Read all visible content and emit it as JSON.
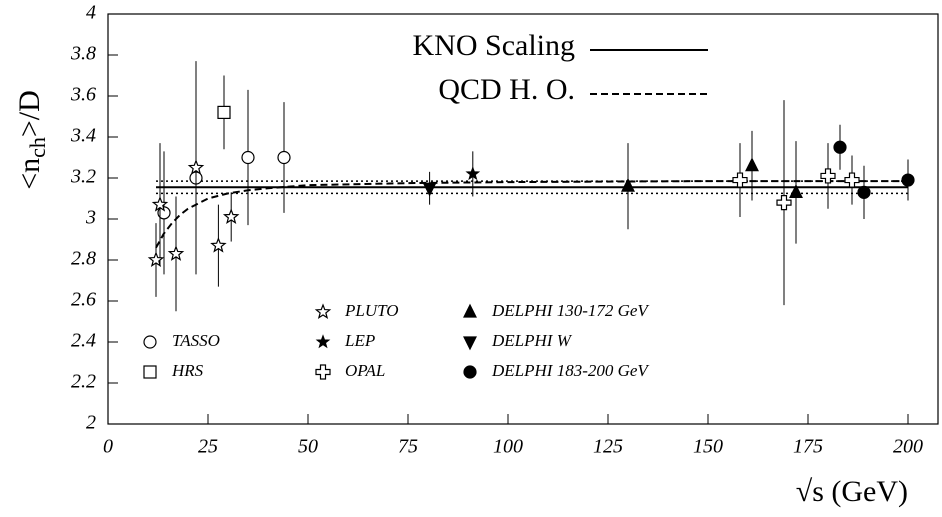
{
  "chart_data": {
    "type": "scatter",
    "y_label": {
      "main": "<n",
      "sub": "ch",
      "rest": ">/D"
    },
    "x_label": "√s (GeV)",
    "xlim": [
      0,
      208
    ],
    "ylim": [
      2,
      4
    ],
    "xticks": [
      0,
      25,
      50,
      75,
      100,
      125,
      150,
      175,
      200
    ],
    "yticks": [
      2,
      2.2,
      2.4,
      2.6,
      2.8,
      3,
      3.2,
      3.4,
      3.6,
      3.8,
      4
    ],
    "lines": [
      {
        "name": "KNO Scaling",
        "style": "solid",
        "x": [
          12,
          200
        ],
        "values": [
          3.155,
          3.155
        ],
        "band": [
          3.125,
          3.185
        ]
      },
      {
        "name": "QCD H. O.",
        "style": "dashed",
        "x": [
          12,
          14,
          16,
          18,
          20,
          25,
          30,
          35,
          40,
          50,
          75,
          100,
          150,
          200
        ],
        "values": [
          2.86,
          2.93,
          2.98,
          3.02,
          3.05,
          3.1,
          3.125,
          3.14,
          3.15,
          3.165,
          3.175,
          3.18,
          3.185,
          3.185
        ]
      }
    ],
    "series": [
      {
        "name": "TASSO",
        "marker": "open-circle",
        "x": [
          14,
          22,
          35,
          44
        ],
        "values": [
          3.03,
          3.2,
          3.3,
          3.3
        ],
        "errors": [
          0.3,
          0.3,
          0.33,
          0.27
        ]
      },
      {
        "name": "HRS",
        "marker": "open-square",
        "x": [
          29
        ],
        "values": [
          3.52
        ],
        "errors": [
          0.18
        ]
      },
      {
        "name": "PLUTO",
        "marker": "open-star",
        "x": [
          12,
          13,
          17,
          22,
          27.6,
          30.8
        ],
        "values": [
          2.8,
          3.07,
          2.83,
          3.25,
          2.87,
          3.01
        ],
        "errors": [
          0.18,
          0.3,
          0.28,
          0.52,
          0.2,
          0.12
        ]
      },
      {
        "name": "LEP",
        "marker": "filled-star",
        "x": [
          91.2
        ],
        "values": [
          3.22
        ],
        "errors": [
          0.11
        ]
      },
      {
        "name": "OPAL",
        "marker": "open-cross",
        "x": [
          158,
          169,
          180,
          186
        ],
        "values": [
          3.19,
          3.08,
          3.21,
          3.19
        ],
        "errors": [
          0.18,
          0.5,
          0.16,
          0.12
        ]
      },
      {
        "name": "DELPHI 130-172 GeV",
        "marker": "triangle-up",
        "x": [
          130,
          161,
          172
        ],
        "values": [
          3.16,
          3.26,
          3.13
        ],
        "errors": [
          0.21,
          0.17,
          0.25
        ]
      },
      {
        "name": "DELPHI W",
        "marker": "triangle-down",
        "x": [
          80.4
        ],
        "values": [
          3.15
        ],
        "errors": [
          0.08
        ]
      },
      {
        "name": "DELPHI 183-200 GeV",
        "marker": "filled-circle",
        "x": [
          183,
          189,
          200
        ],
        "values": [
          3.35,
          3.13,
          3.19
        ],
        "errors": [
          0.11,
          0.13,
          0.1
        ]
      }
    ]
  }
}
